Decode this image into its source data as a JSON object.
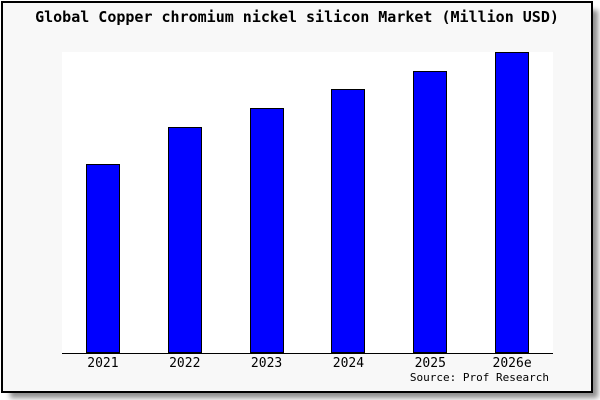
{
  "chart_data": {
    "type": "bar",
    "title": "Global Copper chromium nickel silicon Market (Million USD)",
    "categories": [
      "2021",
      "2022",
      "2023",
      "2024",
      "2025",
      "2026e"
    ],
    "values": [
      62.7,
      75.0,
      81.5,
      87.8,
      93.6,
      100
    ],
    "value_scale": "relative index estimated from bar heights; no y-axis labels shown; tallest bar (2026e) = 100",
    "xlabel": "",
    "ylabel": "",
    "ylim": [
      0,
      100
    ],
    "grid": false,
    "legend": "none",
    "bar_color": "#0000ff",
    "bar_border_color": "#000000",
    "source_note": "Source: Prof Research"
  },
  "colors": {
    "figure_background": "#f8f8f8",
    "plot_background": "#ffffff",
    "bar": "#0000ff",
    "frame_border": "#000000",
    "text": "#000000",
    "shadow": "#8f8f8f"
  }
}
